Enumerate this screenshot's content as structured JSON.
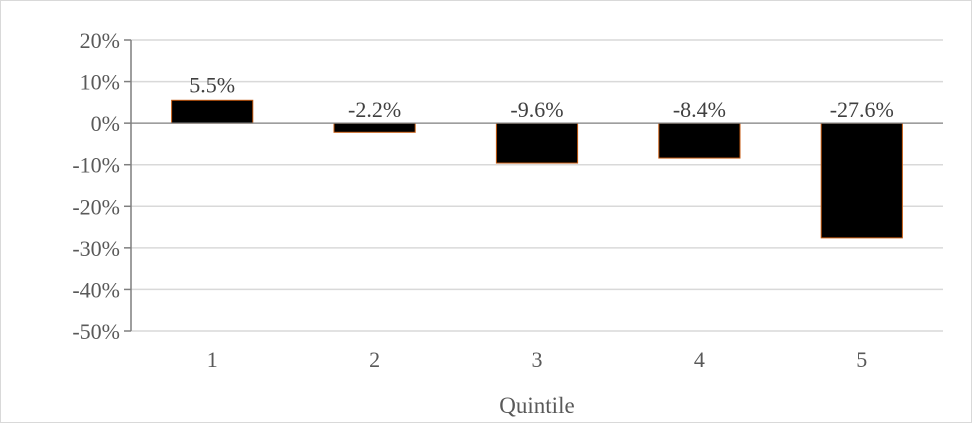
{
  "chart_data": {
    "type": "bar",
    "title": "",
    "xlabel": "Quintile",
    "ylabel": "",
    "categories": [
      "1",
      "2",
      "3",
      "4",
      "5"
    ],
    "values": [
      5.5,
      -2.2,
      -9.6,
      -8.4,
      -27.6
    ],
    "data_labels": [
      "5.5%",
      "-2.2%",
      "-9.6%",
      "-8.4%",
      "-27.6%"
    ],
    "ylim": [
      -50,
      20
    ],
    "yticks": [
      20,
      10,
      0,
      -10,
      -20,
      -30,
      -40,
      -50
    ],
    "ytick_labels": [
      "20%",
      "10%",
      "0%",
      "-10%",
      "-20%",
      "-30%",
      "-40%",
      "-50%"
    ],
    "grid": true,
    "legend": "none",
    "colors": {
      "bar_fill": "#000000",
      "bar_edge": "#c55a11",
      "gridline": "#d9d9d9",
      "axis": "#7f7f7f"
    }
  }
}
